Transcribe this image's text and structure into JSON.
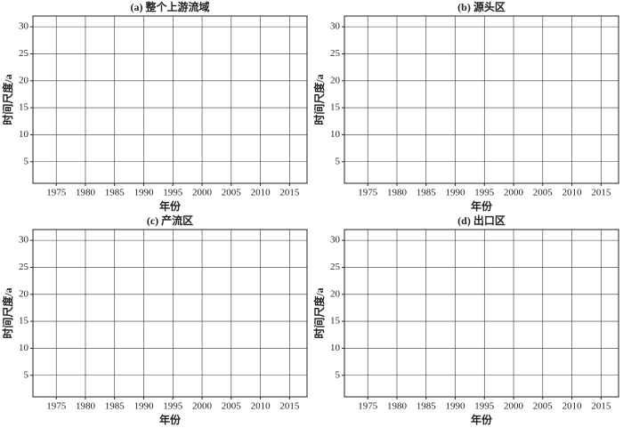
{
  "chart_data": [
    {
      "type": "contour",
      "title": "(a) 整个上游流域",
      "xlabel": "年份",
      "ylabel": "时间尺度/a",
      "xlim": [
        1971,
        2018
      ],
      "ylim": [
        1,
        32
      ],
      "xticks": [
        1975,
        1980,
        1985,
        1990,
        1995,
        2000,
        2005,
        2010,
        2015
      ],
      "yticks": [
        5,
        10,
        15,
        20,
        25,
        30
      ],
      "grid": true
    },
    {
      "type": "contour",
      "title": "(b) 源头区",
      "xlabel": "年份",
      "ylabel": "时间尺度/a",
      "xlim": [
        1971,
        2018
      ],
      "ylim": [
        1,
        32
      ],
      "xticks": [
        1975,
        1980,
        1985,
        1990,
        1995,
        2000,
        2005,
        2010,
        2015
      ],
      "yticks": [
        5,
        10,
        15,
        20,
        25,
        30
      ],
      "grid": true
    },
    {
      "type": "contour",
      "title": "(c) 产流区",
      "xlabel": "年份",
      "ylabel": "时间尺度/a",
      "xlim": [
        1971,
        2018
      ],
      "ylim": [
        1,
        32
      ],
      "xticks": [
        1975,
        1980,
        1985,
        1990,
        1995,
        2000,
        2005,
        2010,
        2015
      ],
      "yticks": [
        5,
        10,
        15,
        20,
        25,
        30
      ],
      "grid": true
    },
    {
      "type": "contour",
      "title": "(d) 出口区",
      "xlabel": "年份",
      "ylabel": "时间尺度/a",
      "xlim": [
        1971,
        2018
      ],
      "ylim": [
        1,
        32
      ],
      "xticks": [
        1975,
        1980,
        1985,
        1990,
        1995,
        2000,
        2005,
        2010,
        2015
      ],
      "yticks": [
        5,
        10,
        15,
        20,
        25,
        30
      ],
      "grid": true
    }
  ]
}
